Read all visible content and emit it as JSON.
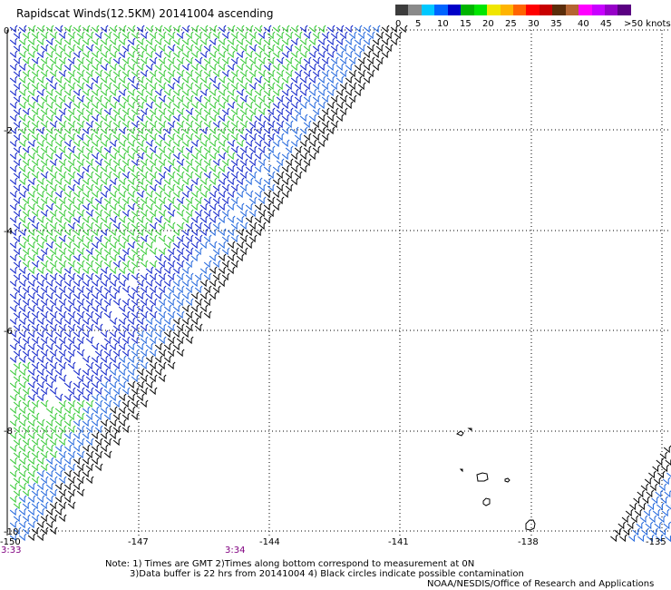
{
  "title": "Rapidscat Winds(12.5KM) 20141004 ascending",
  "legend": {
    "labels": [
      "0",
      "5",
      "10",
      "15",
      "20",
      "25",
      "30",
      "35",
      "40",
      "45",
      ">50 knots"
    ],
    "colors": [
      "#3c3c3c",
      "#8a8a8a",
      "#00c8ff",
      "#0064ff",
      "#0000c8",
      "#00b400",
      "#00e600",
      "#f0e600",
      "#ffb400",
      "#ff6400",
      "#ff0000",
      "#c80000",
      "#5a2d0a",
      "#b46432",
      "#ff00ff",
      "#c800ff",
      "#9600c8",
      "#5a0082"
    ]
  },
  "map": {
    "lat_labels": [
      "0",
      "-2",
      "-4",
      "-6",
      "-8",
      "-10"
    ],
    "lon_labels": [
      "-150",
      "-147",
      "-144",
      "-141",
      "-138",
      "-135"
    ],
    "time_labels": [
      "3:33",
      "3:34"
    ]
  },
  "barb_colors": {
    "black": "#000000",
    "light_blue": "#1e64dc",
    "blue": "#0a1ec8",
    "green": "#32c832"
  },
  "notes": {
    "line1": "Note: 1) Times are GMT 2)Times along bottom correspond to measurement at 0N",
    "line2": "3)Data buffer is 22 hrs from 20141004 4) Black circles indicate possible contamination",
    "credit": "NOAA/NESDIS/Office of Research and Applications"
  }
}
